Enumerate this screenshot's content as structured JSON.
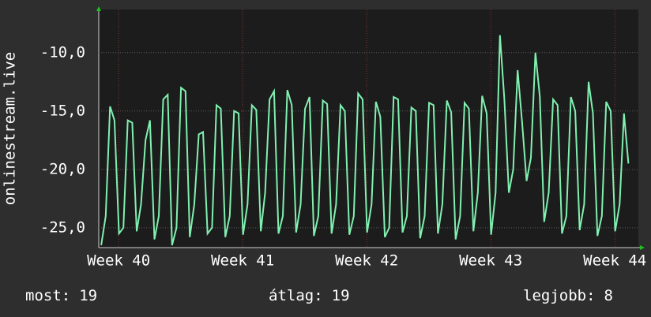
{
  "chart_data": {
    "type": "line",
    "y_label": "onlinestream.live",
    "xlim": [
      39.84,
      44.19
    ],
    "xticks": [
      {
        "value": 40,
        "label": "Week 40"
      },
      {
        "value": 41,
        "label": "Week 41"
      },
      {
        "value": 42,
        "label": "Week 42"
      },
      {
        "value": 43,
        "label": "Week 43"
      },
      {
        "value": 44,
        "label": "Week 44"
      }
    ],
    "ylim": [
      -26.7,
      -6.3
    ],
    "yticks": [
      {
        "value": -10,
        "label": "-10,0"
      },
      {
        "value": -15,
        "label": "-15,0"
      },
      {
        "value": -20,
        "label": "-20,0"
      },
      {
        "value": -25,
        "label": "-25,0"
      }
    ],
    "grid": true,
    "x": [
      39.86,
      39.896,
      39.931,
      39.967,
      40.003,
      40.039,
      40.074,
      40.11,
      40.146,
      40.181,
      40.217,
      40.253,
      40.289,
      40.324,
      40.36,
      40.396,
      40.431,
      40.467,
      40.503,
      40.539,
      40.574,
      40.61,
      40.646,
      40.681,
      40.717,
      40.753,
      40.789,
      40.824,
      40.86,
      40.896,
      40.931,
      40.967,
      41.003,
      41.039,
      41.074,
      41.11,
      41.146,
      41.181,
      41.217,
      41.253,
      41.289,
      41.324,
      41.36,
      41.396,
      41.431,
      41.467,
      41.503,
      41.539,
      41.574,
      41.61,
      41.646,
      41.681,
      41.717,
      41.753,
      41.789,
      41.824,
      41.86,
      41.896,
      41.931,
      41.967,
      42.003,
      42.039,
      42.074,
      42.11,
      42.146,
      42.181,
      42.217,
      42.253,
      42.289,
      42.324,
      42.36,
      42.396,
      42.431,
      42.467,
      42.503,
      42.539,
      42.574,
      42.61,
      42.646,
      42.681,
      42.717,
      42.753,
      42.789,
      42.824,
      42.86,
      42.896,
      42.931,
      42.967,
      43.003,
      43.039,
      43.074,
      43.11,
      43.146,
      43.181,
      43.217,
      43.253,
      43.289,
      43.324,
      43.36,
      43.396,
      43.431,
      43.467,
      43.503,
      43.539,
      43.574,
      43.61,
      43.646,
      43.681,
      43.717,
      43.753,
      43.789,
      43.824,
      43.86,
      43.896,
      43.931,
      43.967,
      44.003,
      44.039,
      44.074,
      44.11
    ],
    "series": [
      {
        "color": "#80f0b0",
        "values": [
          -26.5,
          -24,
          -14.6,
          -15.8,
          -25.5,
          -25,
          -15.8,
          -16,
          -25.3,
          -23,
          -17.5,
          -15.8,
          -26,
          -24,
          -14,
          -13.6,
          -26.5,
          -25,
          -13,
          -13.3,
          -25.8,
          -23,
          -17,
          -16.8,
          -25.5,
          -25,
          -14.5,
          -14.8,
          -25.8,
          -24,
          -15,
          -15.2,
          -25.6,
          -23,
          -14.5,
          -14.9,
          -25.3,
          -22,
          -14,
          -13.3,
          -25.5,
          -24,
          -13.2,
          -14.5,
          -25.4,
          -23,
          -14.8,
          -13.8,
          -25.7,
          -24,
          -14.1,
          -14.4,
          -25.5,
          -23,
          -14.5,
          -15,
          -25.6,
          -24,
          -13.5,
          -14,
          -25.4,
          -23,
          -14.2,
          -15.5,
          -25.8,
          -25,
          -13.8,
          -14,
          -25.4,
          -24,
          -14.7,
          -15,
          -25.9,
          -24,
          -14.3,
          -14.5,
          -25.5,
          -23,
          -14.1,
          -15.1,
          -26,
          -24,
          -14.3,
          -14.8,
          -25.3,
          -22,
          -13.7,
          -15.2,
          -25.6,
          -22,
          -8.5,
          -14,
          -22,
          -20,
          -11.5,
          -16,
          -21,
          -19,
          -10,
          -13.8,
          -24.5,
          -22,
          -14,
          -14.5,
          -25.5,
          -24,
          -13.8,
          -15,
          -25.2,
          -23,
          -12.5,
          -15.2,
          -25.7,
          -24,
          -14.2,
          -15,
          -25.3,
          -23,
          -15.2,
          -19.5
        ]
      }
    ]
  },
  "footer": [
    {
      "label": "most:",
      "value": 19
    },
    {
      "label": "átlag:",
      "value": 19
    },
    {
      "label": "legjobb:",
      "value": 8
    }
  ]
}
